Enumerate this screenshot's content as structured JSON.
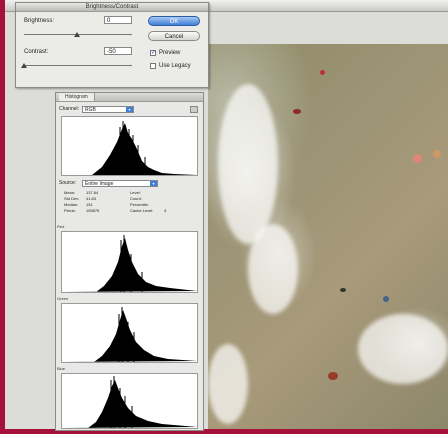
{
  "dialog": {
    "title": "Brightness/Contrast",
    "brightness_label": "Brightness:",
    "brightness_value": "0",
    "contrast_label": "Contrast:",
    "contrast_value": "-50",
    "ok_label": "OK",
    "cancel_label": "Cancel",
    "preview_label": "Preview",
    "preview_checked": true,
    "legacy_label": "Use Legacy",
    "legacy_checked": false
  },
  "histogram": {
    "tab_label": "Histogram",
    "channel_label": "Channel:",
    "channel_value": "RGB",
    "source_label": "Source:",
    "source_value": "Entire Image",
    "stats": [
      [
        "Mean:",
        "137.64",
        "Level:",
        ""
      ],
      [
        "Std Dev:",
        "41.83",
        "Count:",
        ""
      ],
      [
        "Median:",
        "151",
        "Percentile:",
        ""
      ],
      [
        "Pixels:",
        "155875",
        "Cache Level:",
        "3"
      ]
    ],
    "channels": [
      "Red",
      "Green",
      "Blue"
    ]
  },
  "colors": {
    "desktop": "#a5113a",
    "accent": "#3f7fd6"
  }
}
